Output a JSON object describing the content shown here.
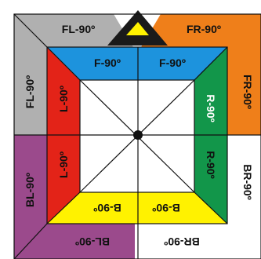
{
  "title": "",
  "colors": {
    "gray": "#b0b0b0",
    "orange": "#ef7f1a",
    "purple": "#9b4a8c",
    "white": "#ffffff",
    "blue": "#1d93dd",
    "red": "#e32318",
    "green": "#12964a",
    "yellow": "#fff200",
    "black": "#1a1a1a",
    "text_dark": "#111111",
    "text_light": "#ffffff"
  },
  "labels": {
    "fl_top": "FL-90º",
    "fr_top": "FR-90º",
    "fl_side": "FL-90º",
    "fr_side": "FR-90º",
    "bl_side": "BL-90º",
    "br_side": "BR-90º",
    "bl_bottom": "BL-90º",
    "br_bottom": "BR-90º",
    "f_left": "F-90º",
    "f_right": "F-90º",
    "l_top": "L-90º",
    "l_bottom": "L-90º",
    "r_top": "R-90º",
    "r_bottom": "R-90º",
    "b_left": "B-90º",
    "b_right": "B-90º"
  }
}
